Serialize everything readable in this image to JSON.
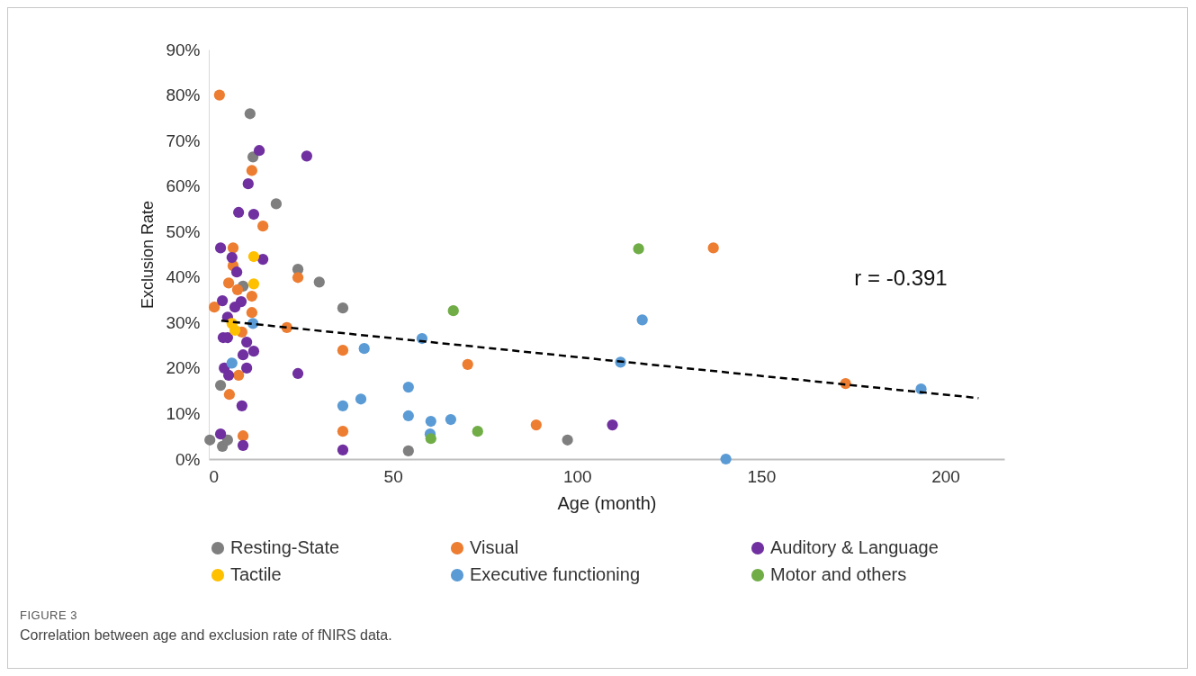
{
  "chart_data": {
    "type": "scatter",
    "xlabel": "Age (month)",
    "ylabel": "Exclusion Rate",
    "xlim": [
      0,
      216
    ],
    "xticks": [
      0,
      50,
      100,
      150,
      200
    ],
    "ylim": [
      0,
      90
    ],
    "yticks": [
      {
        "value": 0,
        "label": "0%"
      },
      {
        "value": 10,
        "label": "10%"
      },
      {
        "value": 20,
        "label": "20%"
      },
      {
        "value": 30,
        "label": "30%"
      },
      {
        "value": 40,
        "label": "40%"
      },
      {
        "value": 50,
        "label": "50%"
      },
      {
        "value": 60,
        "label": "60%"
      },
      {
        "value": 70,
        "label": "70%"
      },
      {
        "value": 80,
        "label": "80%"
      },
      {
        "value": 90,
        "label": "90%"
      }
    ],
    "grid": false,
    "legend": "bottom",
    "marker": "circle",
    "annotations": [
      "r = -0.391",
      "FIGURE 3",
      "Correlation between age and exclusion rate of fNIRS data."
    ],
    "series": [
      {
        "name": "Resting-State",
        "color": "#7f7f7f",
        "x": [
          11.2,
          12,
          18.3,
          24.2,
          30,
          36.4,
          54.2,
          97.4,
          3.2,
          0.3,
          3.7,
          5.1,
          9.3
        ],
        "values": [
          75.9,
          66.4,
          56.1,
          41.7,
          38.9,
          33.2,
          1.8,
          4.2,
          16.2,
          4.2,
          2.8,
          4.2,
          38
        ]
      },
      {
        "name": "Visual",
        "color": "#ed7d31",
        "x": [
          2.9,
          11.7,
          14.7,
          6.6,
          1.5,
          24.2,
          21.2,
          36.4,
          36.4,
          70.3,
          88.9,
          137,
          172.9,
          9.3,
          5.6,
          11.7,
          11.7,
          5.4,
          7.8,
          6.6,
          8.1,
          9
        ],
        "values": [
          80,
          63.4,
          51.2,
          46.4,
          33.4,
          39.9,
          28.9,
          23.9,
          6.1,
          20.8,
          7.5,
          46.4,
          16.6,
          5.1,
          14.2,
          32.2,
          35.8,
          38.7,
          37.2,
          42.5,
          18.4,
          27.9
        ]
      },
      {
        "name": "Auditory & Language",
        "color": "#7030a0",
        "x": [
          13.7,
          26.6,
          10.7,
          8.1,
          12.2,
          3.2,
          6.3,
          14.7,
          7.6,
          8.8,
          7.1,
          3.7,
          5.1,
          3.9,
          5.1,
          10.3,
          12.2,
          9.3,
          4.2,
          5.4,
          10.3,
          9,
          3.2,
          9.3,
          24.2,
          36.4,
          109.6
        ],
        "values": [
          67.8,
          66.6,
          60.5,
          54.2,
          53.8,
          46.4,
          44.3,
          43.9,
          41.1,
          34.6,
          33.4,
          34.8,
          31.2,
          26.7,
          26.7,
          25.7,
          23.7,
          22.9,
          20,
          18.4,
          20,
          11.7,
          5.5,
          3,
          18.8,
          2,
          7.5
        ]
      },
      {
        "name": "Tactile",
        "color": "#ffc000",
        "x": [
          12.2,
          12.2,
          6.3,
          7.1
        ],
        "values": [
          44.5,
          38.5,
          29.8,
          28.3
        ]
      },
      {
        "name": "Executive functioning",
        "color": "#5b9bd5",
        "x": [
          12,
          6.3,
          42.2,
          57.9,
          36.4,
          41.3,
          54.2,
          54.2,
          60.3,
          65.7,
          60.1,
          111.8,
          117.7,
          140.4,
          193.4
        ],
        "values": [
          29.8,
          21.1,
          24.3,
          26.5,
          11.7,
          13.2,
          15.8,
          9.5,
          8.3,
          8.7,
          5.5,
          21.3,
          30.6,
          0,
          15.4
        ]
      },
      {
        "name": "Motor and others",
        "color": "#70ad47",
        "x": [
          116.7,
          66.4,
          73,
          60.3
        ],
        "values": [
          46.2,
          32.6,
          6.1,
          4.5
        ]
      },
      {
        "type": "line",
        "color": "#000000",
        "line_style": "dashed",
        "marker": "none",
        "x": [
          3.4,
          209
        ],
        "values": [
          30.4,
          13.4
        ]
      }
    ]
  }
}
